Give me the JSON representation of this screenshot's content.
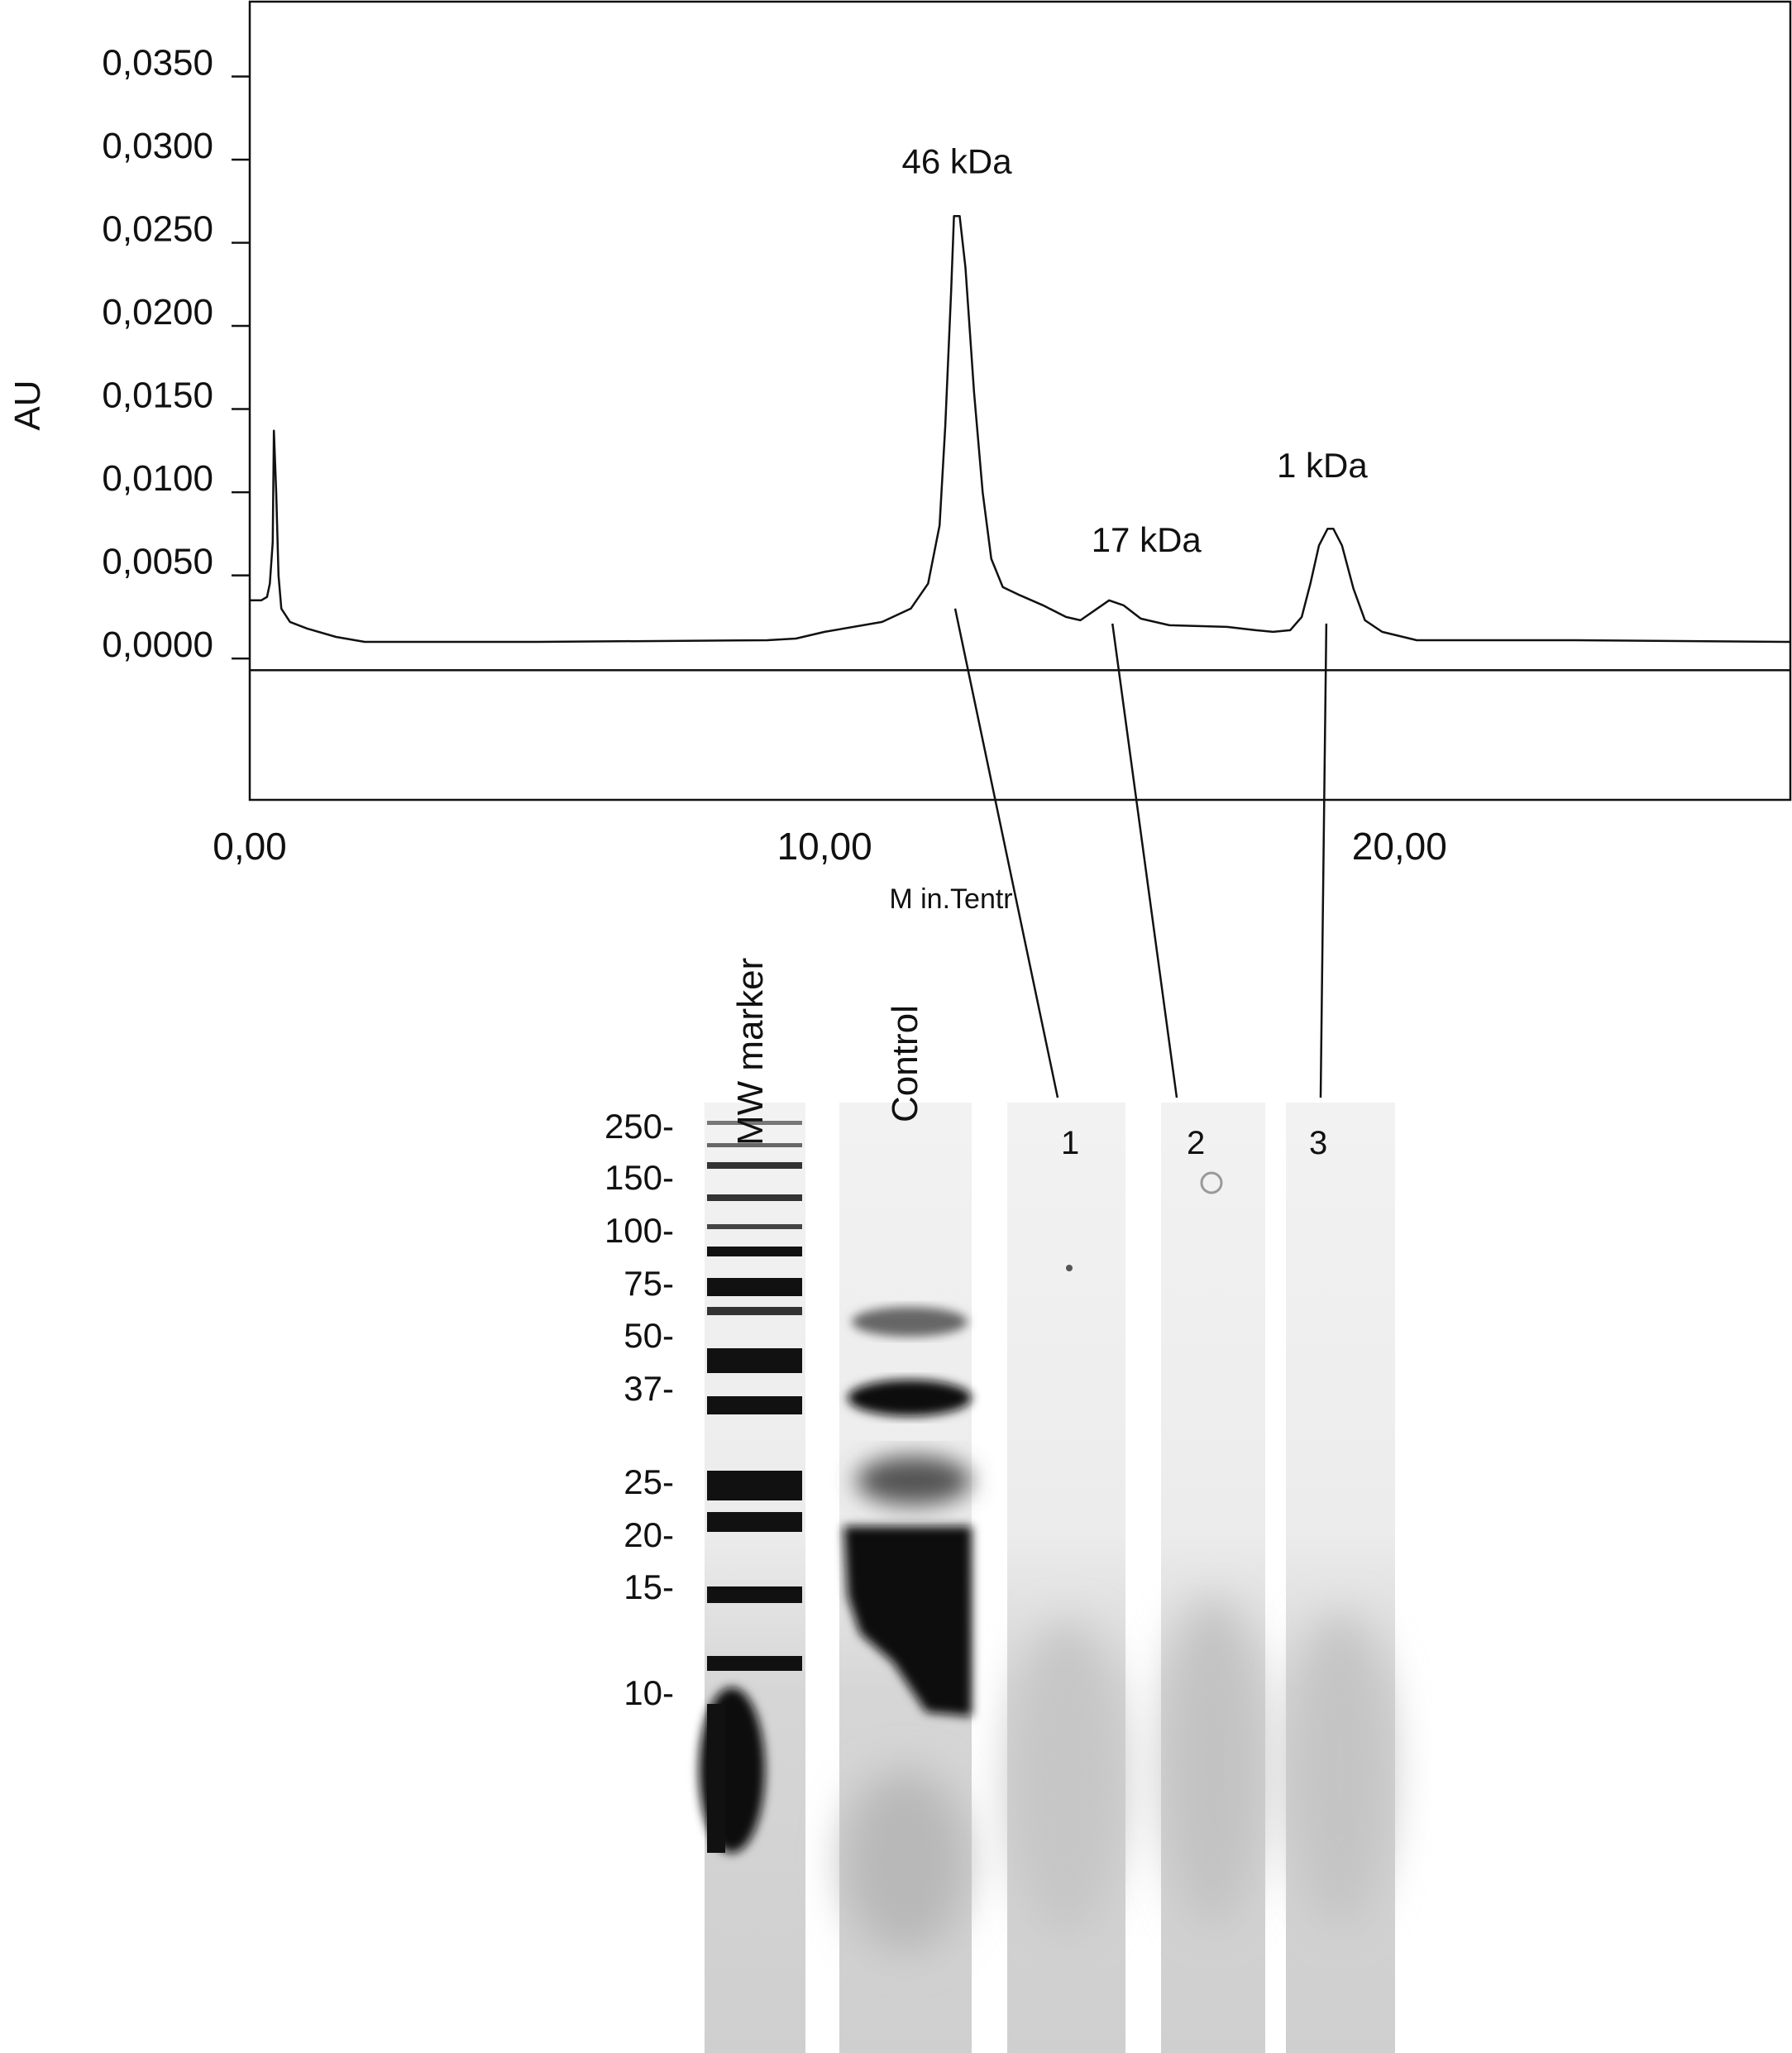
{
  "chart_data": {
    "type": "line",
    "ylabel": "AU",
    "xlabel": "M in.Tentr",
    "xlim": [
      0,
      26.8
    ],
    "ylim": [
      -0.0085,
      0.0395
    ],
    "yticks": [
      {
        "value": 0.0,
        "label": "0,0000"
      },
      {
        "value": 0.005,
        "label": "0,0050"
      },
      {
        "value": 0.01,
        "label": "0,0100"
      },
      {
        "value": 0.015,
        "label": "0,0150"
      },
      {
        "value": 0.02,
        "label": "0,0200"
      },
      {
        "value": 0.025,
        "label": "0,0250"
      },
      {
        "value": 0.03,
        "label": "0,0300"
      },
      {
        "value": 0.035,
        "label": "0,0350"
      }
    ],
    "xticks": [
      {
        "value": 0,
        "label": "0,00"
      },
      {
        "value": 10,
        "label": "10,00"
      },
      {
        "value": 20,
        "label": "20,00"
      }
    ],
    "baseline": -0.0007,
    "series": [
      {
        "points": [
          [
            0.0,
            0.0035
          ],
          [
            0.2,
            0.0035
          ],
          [
            0.3,
            0.0037
          ],
          [
            0.35,
            0.0045
          ],
          [
            0.4,
            0.007
          ],
          [
            0.42,
            0.0137
          ],
          [
            0.46,
            0.01
          ],
          [
            0.5,
            0.005
          ],
          [
            0.55,
            0.003
          ],
          [
            0.7,
            0.0022
          ],
          [
            1.0,
            0.0018
          ],
          [
            1.5,
            0.0013
          ],
          [
            2.0,
            0.001
          ],
          [
            2.5,
            0.001
          ],
          [
            5.0,
            0.001
          ],
          [
            9.0,
            0.0011
          ],
          [
            9.5,
            0.0012
          ],
          [
            10.0,
            0.0016
          ],
          [
            11.0,
            0.0022
          ],
          [
            11.5,
            0.003
          ],
          [
            11.8,
            0.0045
          ],
          [
            12.0,
            0.008
          ],
          [
            12.1,
            0.014
          ],
          [
            12.2,
            0.022
          ],
          [
            12.25,
            0.0266
          ],
          [
            12.35,
            0.0266
          ],
          [
            12.45,
            0.0235
          ],
          [
            12.6,
            0.016
          ],
          [
            12.75,
            0.01
          ],
          [
            12.9,
            0.006
          ],
          [
            13.1,
            0.0043
          ],
          [
            13.4,
            0.0038
          ],
          [
            13.8,
            0.0032
          ],
          [
            14.2,
            0.0025
          ],
          [
            14.45,
            0.0023
          ],
          [
            14.7,
            0.0029
          ],
          [
            14.95,
            0.0035
          ],
          [
            15.2,
            0.0032
          ],
          [
            15.5,
            0.0024
          ],
          [
            16.0,
            0.002
          ],
          [
            17.0,
            0.0019
          ],
          [
            17.5,
            0.0017
          ],
          [
            17.8,
            0.0016
          ],
          [
            18.1,
            0.0017
          ],
          [
            18.3,
            0.0025
          ],
          [
            18.45,
            0.0045
          ],
          [
            18.6,
            0.0068
          ],
          [
            18.75,
            0.0078
          ],
          [
            18.85,
            0.0078
          ],
          [
            19.0,
            0.0068
          ],
          [
            19.2,
            0.0042
          ],
          [
            19.4,
            0.0023
          ],
          [
            19.7,
            0.0016
          ],
          [
            20.3,
            0.0011
          ],
          [
            23.0,
            0.0011
          ],
          [
            26.8,
            0.001
          ]
        ]
      }
    ],
    "peak_labels": [
      {
        "text": "46 kDa",
        "x": 12.3,
        "y": 0.0266,
        "lane": "1"
      },
      {
        "text": "17 kDa",
        "x": 14.95,
        "y": 0.0022,
        "lane": "2"
      },
      {
        "text": "1 kDa",
        "x": 18.8,
        "y": 0.0022,
        "lane": "3"
      }
    ]
  },
  "gel": {
    "lane_labels": {
      "marker": "MW marker",
      "control": "Control",
      "l1": "1",
      "l2": "2",
      "l3": "3"
    },
    "mw_markers": [
      "250-",
      "150-",
      "100-",
      "75-",
      "50-",
      "37-",
      "25-",
      "20-",
      "15-",
      "10-"
    ]
  }
}
